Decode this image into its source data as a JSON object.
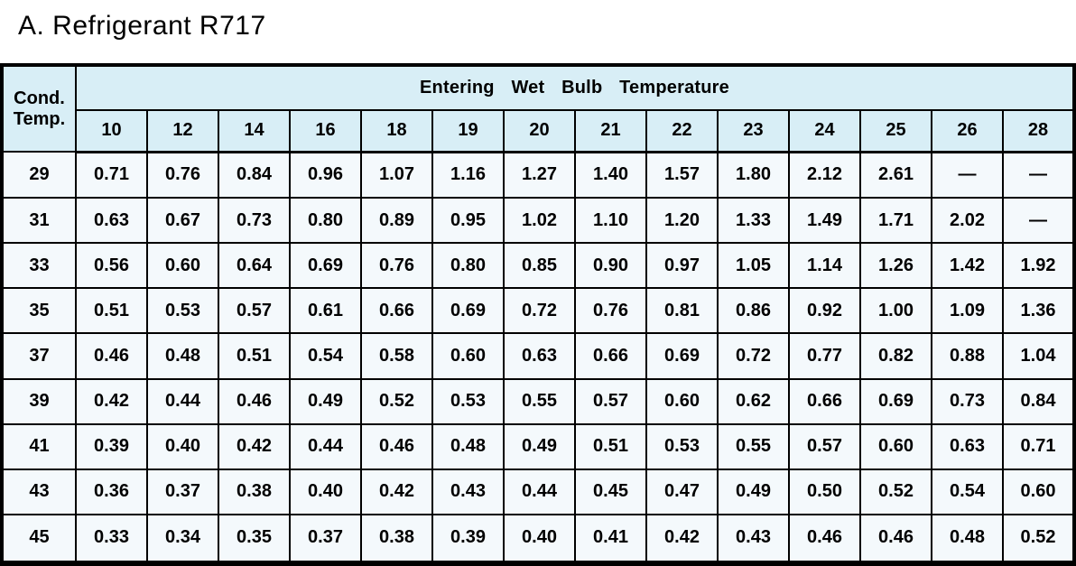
{
  "title": "A. Refrigerant R717",
  "colors": {
    "header_bg": "#d8eef6",
    "cell_bg": "#f4f9fc",
    "border": "#000000",
    "text": "#000000"
  },
  "table": {
    "corner_header": "Cond. Temp.",
    "group_header": "Entering Wet Bulb Temperature",
    "wet_bulb_temps": [
      "10",
      "12",
      "14",
      "16",
      "18",
      "19",
      "20",
      "21",
      "22",
      "23",
      "24",
      "25",
      "26",
      "28"
    ],
    "rows": [
      {
        "cond_temp": "29",
        "values": [
          "0.71",
          "0.76",
          "0.84",
          "0.96",
          "1.07",
          "1.16",
          "1.27",
          "1.40",
          "1.57",
          "1.80",
          "2.12",
          "2.61",
          "—",
          "—"
        ]
      },
      {
        "cond_temp": "31",
        "values": [
          "0.63",
          "0.67",
          "0.73",
          "0.80",
          "0.89",
          "0.95",
          "1.02",
          "1.10",
          "1.20",
          "1.33",
          "1.49",
          "1.71",
          "2.02",
          "—"
        ]
      },
      {
        "cond_temp": "33",
        "values": [
          "0.56",
          "0.60",
          "0.64",
          "0.69",
          "0.76",
          "0.80",
          "0.85",
          "0.90",
          "0.97",
          "1.05",
          "1.14",
          "1.26",
          "1.42",
          "1.92"
        ]
      },
      {
        "cond_temp": "35",
        "values": [
          "0.51",
          "0.53",
          "0.57",
          "0.61",
          "0.66",
          "0.69",
          "0.72",
          "0.76",
          "0.81",
          "0.86",
          "0.92",
          "1.00",
          "1.09",
          "1.36"
        ]
      },
      {
        "cond_temp": "37",
        "values": [
          "0.46",
          "0.48",
          "0.51",
          "0.54",
          "0.58",
          "0.60",
          "0.63",
          "0.66",
          "0.69",
          "0.72",
          "0.77",
          "0.82",
          "0.88",
          "1.04"
        ]
      },
      {
        "cond_temp": "39",
        "values": [
          "0.42",
          "0.44",
          "0.46",
          "0.49",
          "0.52",
          "0.53",
          "0.55",
          "0.57",
          "0.60",
          "0.62",
          "0.66",
          "0.69",
          "0.73",
          "0.84"
        ]
      },
      {
        "cond_temp": "41",
        "values": [
          "0.39",
          "0.40",
          "0.42",
          "0.44",
          "0.46",
          "0.48",
          "0.49",
          "0.51",
          "0.53",
          "0.55",
          "0.57",
          "0.60",
          "0.63",
          "0.71"
        ]
      },
      {
        "cond_temp": "43",
        "values": [
          "0.36",
          "0.37",
          "0.38",
          "0.40",
          "0.42",
          "0.43",
          "0.44",
          "0.45",
          "0.47",
          "0.49",
          "0.50",
          "0.52",
          "0.54",
          "0.60"
        ]
      },
      {
        "cond_temp": "45",
        "values": [
          "0.33",
          "0.34",
          "0.35",
          "0.37",
          "0.38",
          "0.39",
          "0.40",
          "0.41",
          "0.42",
          "0.43",
          "0.46",
          "0.46",
          "0.48",
          "0.52"
        ]
      }
    ]
  }
}
